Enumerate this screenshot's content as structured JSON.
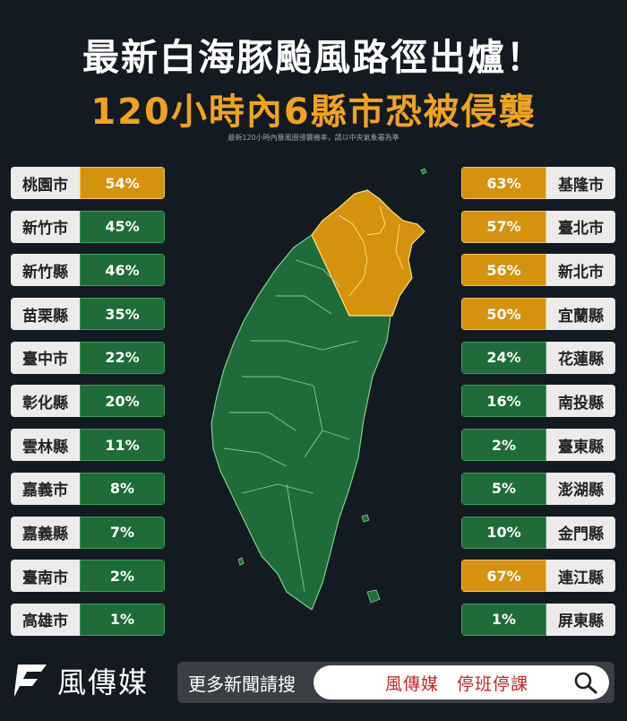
{
  "title": "最新白海豚颱風路徑出爐！",
  "subtitle": "120小時內6縣市恐被侵襲",
  "source": "最新120小時內暴風圈侵襲機率，請以中央氣象署為準",
  "colors": {
    "yellow": "#d4920f",
    "green": "#1f6b3a",
    "background": "#131a22"
  },
  "left_column": [
    {
      "name": "桃園市",
      "value": "54%",
      "level": "high"
    },
    {
      "name": "新竹市",
      "value": "45%",
      "level": "low"
    },
    {
      "name": "新竹縣",
      "value": "46%",
      "level": "low"
    },
    {
      "name": "苗栗縣",
      "value": "35%",
      "level": "low"
    },
    {
      "name": "臺中市",
      "value": "22%",
      "level": "low"
    },
    {
      "name": "彰化縣",
      "value": "20%",
      "level": "low"
    },
    {
      "name": "雲林縣",
      "value": "11%",
      "level": "low"
    },
    {
      "name": "嘉義市",
      "value": "8%",
      "level": "low"
    },
    {
      "name": "嘉義縣",
      "value": "7%",
      "level": "low"
    },
    {
      "name": "臺南市",
      "value": "2%",
      "level": "low"
    },
    {
      "name": "高雄市",
      "value": "1%",
      "level": "low"
    }
  ],
  "right_column": [
    {
      "name": "基隆市",
      "value": "63%",
      "level": "high"
    },
    {
      "name": "臺北市",
      "value": "57%",
      "level": "high"
    },
    {
      "name": "新北市",
      "value": "56%",
      "level": "high"
    },
    {
      "name": "宜蘭縣",
      "value": "50%",
      "level": "high"
    },
    {
      "name": "花蓮縣",
      "value": "24%",
      "level": "low"
    },
    {
      "name": "南投縣",
      "value": "16%",
      "level": "low"
    },
    {
      "name": "臺東縣",
      "value": "2%",
      "level": "low"
    },
    {
      "name": "澎湖縣",
      "value": "5%",
      "level": "low"
    },
    {
      "name": "金門縣",
      "value": "10%",
      "level": "low"
    },
    {
      "name": "連江縣",
      "value": "67%",
      "level": "high"
    },
    {
      "name": "屏東縣",
      "value": "1%",
      "level": "low"
    }
  ],
  "footer": {
    "logo_text": "風傳媒",
    "search_label": "更多新聞請搜",
    "search_query": "風傳媒　停班停課",
    "search_icon": "search-icon"
  }
}
